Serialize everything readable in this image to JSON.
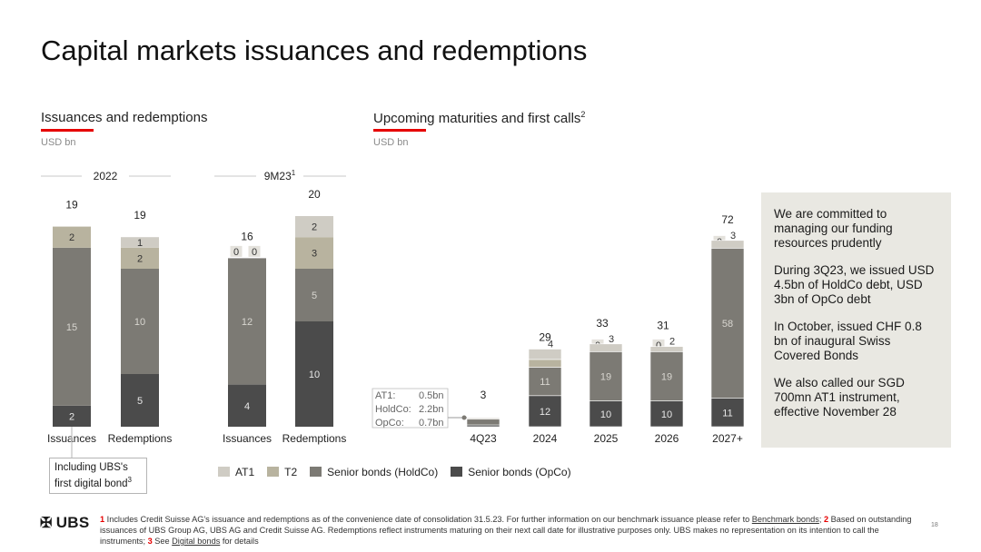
{
  "title": "Capital markets issuances and redemptions",
  "left_section": {
    "title": "Issuances and redemptions",
    "unit": "USD bn"
  },
  "right_section": {
    "title": "Upcoming maturities and first calls",
    "title_sup": "2",
    "unit": "USD bn"
  },
  "colors": {
    "AT1": "#cfccc4",
    "T2": "#b8b39f",
    "HoldCo": "#7c7a74",
    "OpCo": "#4b4b4b",
    "accent": "#e60000",
    "panel": "#e9e8e2"
  },
  "chart_data": [
    {
      "type": "bar",
      "stacked": true,
      "unit": "USD bn",
      "groups": [
        {
          "label": "2022",
          "sup": ""
        },
        {
          "label": "9M23",
          "sup": "1"
        }
      ],
      "categories": [
        "Issuances",
        "Redemptions",
        "Issuances",
        "Redemptions"
      ],
      "series": [
        {
          "name": "Senior bonds (OpCo)",
          "values": [
            2,
            5,
            4,
            10
          ]
        },
        {
          "name": "Senior bonds (HoldCo)",
          "values": [
            15,
            10,
            12,
            5
          ]
        },
        {
          "name": "T2",
          "values": [
            2,
            2,
            0,
            3
          ]
        },
        {
          "name": "AT1",
          "values": [
            0,
            1,
            0,
            2
          ]
        }
      ],
      "segment_labels": [
        [
          "2",
          "15",
          "2",
          ""
        ],
        [
          "5",
          "10",
          "2",
          "1"
        ],
        [
          "4",
          "12",
          "0",
          "0"
        ],
        [
          "10",
          "5",
          "3",
          "2"
        ]
      ],
      "totals": [
        "19",
        "19",
        "16",
        "20"
      ]
    },
    {
      "type": "bar",
      "stacked": true,
      "unit": "USD bn",
      "categories": [
        "4Q23",
        "2024",
        "2025",
        "2026",
        "2027+"
      ],
      "series": [
        {
          "name": "Senior bonds (OpCo)",
          "values": [
            0.7,
            12,
            10,
            10,
            11
          ]
        },
        {
          "name": "Senior bonds (HoldCo)",
          "values": [
            2.2,
            11,
            19,
            19,
            58
          ]
        },
        {
          "name": "T2",
          "values": [
            0,
            3,
            0,
            0,
            0
          ]
        },
        {
          "name": "AT1",
          "values": [
            0.5,
            4,
            3,
            2,
            3
          ]
        }
      ],
      "segment_labels": [
        [
          "",
          "",
          "",
          ""
        ],
        [
          "12",
          "11",
          "3",
          "4"
        ],
        [
          "10",
          "19",
          "0",
          "3"
        ],
        [
          "10",
          "19",
          "0",
          "2"
        ],
        [
          "11",
          "58",
          "0",
          "3"
        ]
      ],
      "totals": [
        "3",
        "29",
        "33",
        "31",
        "72"
      ],
      "breakdown_4q23": [
        {
          "label": "AT1:",
          "value": "0.5bn"
        },
        {
          "label": "HoldCo:",
          "value": "2.2bn"
        },
        {
          "label": "OpCo:",
          "value": "0.7bn"
        }
      ]
    }
  ],
  "legend": [
    {
      "name": "AT1",
      "color": "#cfccc4"
    },
    {
      "name": "T2",
      "color": "#b8b39f"
    },
    {
      "name": "Senior bonds (HoldCo)",
      "color": "#7c7a74"
    },
    {
      "name": "Senior bonds (OpCo)",
      "color": "#4b4b4b"
    }
  ],
  "callout": {
    "text": "Including UBS's first digital bond",
    "sup": "3"
  },
  "panel": {
    "p1": "We are committed to managing our funding resources prudently",
    "p2": "During 3Q23, we issued  USD 4.5bn of HoldCo debt, USD 3bn of OpCo debt",
    "p3": "In October, issued CHF 0.8 bn of inaugural Swiss Covered Bonds",
    "p4": "We also called our SGD 700mn AT1 instrument, effective November 28"
  },
  "logo": {
    "text": "UBS"
  },
  "footnote": {
    "n1": "1",
    "t1": " Includes Credit Suisse AG's issuance and redemptions as of the convenience date of consolidation 31.5.23. For further information on our benchmark issuance please refer to ",
    "link1": "Benchmark bonds",
    "sep": "; ",
    "n2": "2",
    "t2": " Based on outstanding issuances of UBS Group AG, UBS AG and Credit Suisse AG. Redemptions reflect instruments maturing on their next call date for illustrative purposes only. UBS makes no representation on its intention to call the instruments; ",
    "n3": "3",
    "t3": " See ",
    "link3": "Digital bonds",
    "t4": " for details"
  },
  "page_number": "18"
}
